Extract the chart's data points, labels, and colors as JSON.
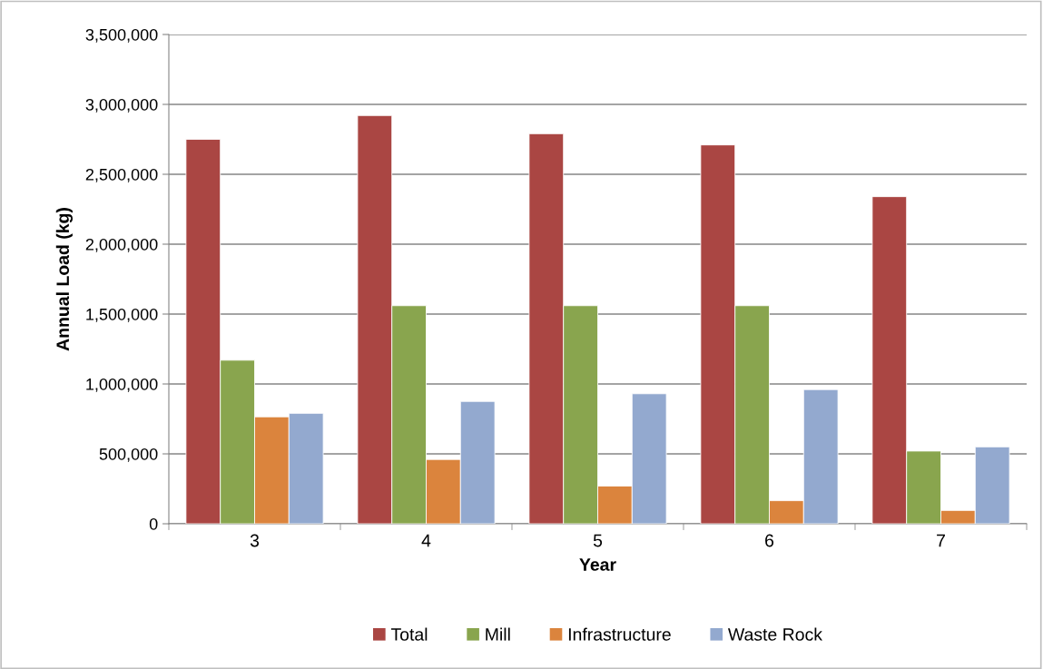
{
  "chart_data": {
    "type": "bar",
    "xlabel": "Year",
    "ylabel": "Annual Load (kg)",
    "categories": [
      "3",
      "4",
      "5",
      "6",
      "7"
    ],
    "series": [
      {
        "name": "Total",
        "color": "#aa4643",
        "values": [
          2750000,
          2920000,
          2790000,
          2710000,
          2340000
        ]
      },
      {
        "name": "Mill",
        "color": "#89a54e",
        "values": [
          1170000,
          1560000,
          1560000,
          1560000,
          520000
        ]
      },
      {
        "name": "Infrastructure",
        "color": "#db843d",
        "values": [
          765000,
          460000,
          270000,
          165000,
          95000
        ]
      },
      {
        "name": "Waste Rock",
        "color": "#93a9cf",
        "values": [
          790000,
          875000,
          930000,
          960000,
          550000
        ]
      }
    ],
    "ylim": [
      0,
      3500000
    ],
    "yticks": [
      {
        "value": 0,
        "label": "0"
      },
      {
        "value": 500000,
        "label": "500,000"
      },
      {
        "value": 1000000,
        "label": "1,000,000"
      },
      {
        "value": 1500000,
        "label": "1,500,000"
      },
      {
        "value": 2000000,
        "label": "2,000,000"
      },
      {
        "value": 2500000,
        "label": "2,500,000"
      },
      {
        "value": 3000000,
        "label": "3,000,000"
      },
      {
        "value": 3500000,
        "label": "3,500,000"
      }
    ],
    "grid": "y",
    "legend": "bottom"
  }
}
